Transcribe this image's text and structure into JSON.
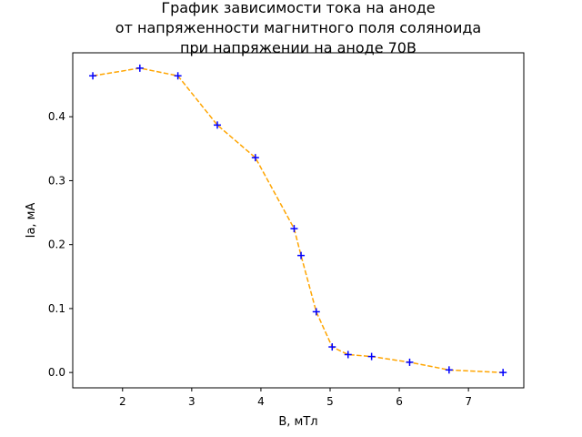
{
  "chart_data": {
    "type": "line",
    "title": [
      "График зависимости тока на аноде",
      "от напряженности магнитного поля соляноида",
      "при напряжении на аноде 70В"
    ],
    "xlabel": "B, мТл",
    "ylabel": "Ia, мА",
    "xlim": [
      1.28,
      7.8
    ],
    "ylim": [
      -0.024,
      0.5
    ],
    "xticks": [
      2,
      3,
      4,
      5,
      6,
      7
    ],
    "yticks": [
      0.0,
      0.1,
      0.2,
      0.3,
      0.4
    ],
    "ytick_labels": [
      "0.0",
      "0.1",
      "0.2",
      "0.3",
      "0.4"
    ],
    "grid": false,
    "series": [
      {
        "line_color": "#ffa500",
        "line_style": "dashed",
        "marker": "+",
        "marker_color": "#0000ff",
        "x": [
          1.57,
          2.25,
          2.8,
          3.37,
          3.92,
          4.48,
          4.58,
          4.8,
          5.03,
          5.26,
          5.6,
          6.15,
          6.72,
          7.5
        ],
        "y": [
          0.464,
          0.476,
          0.464,
          0.387,
          0.336,
          0.225,
          0.183,
          0.095,
          0.04,
          0.028,
          0.025,
          0.016,
          0.004,
          0.0
        ]
      }
    ]
  }
}
